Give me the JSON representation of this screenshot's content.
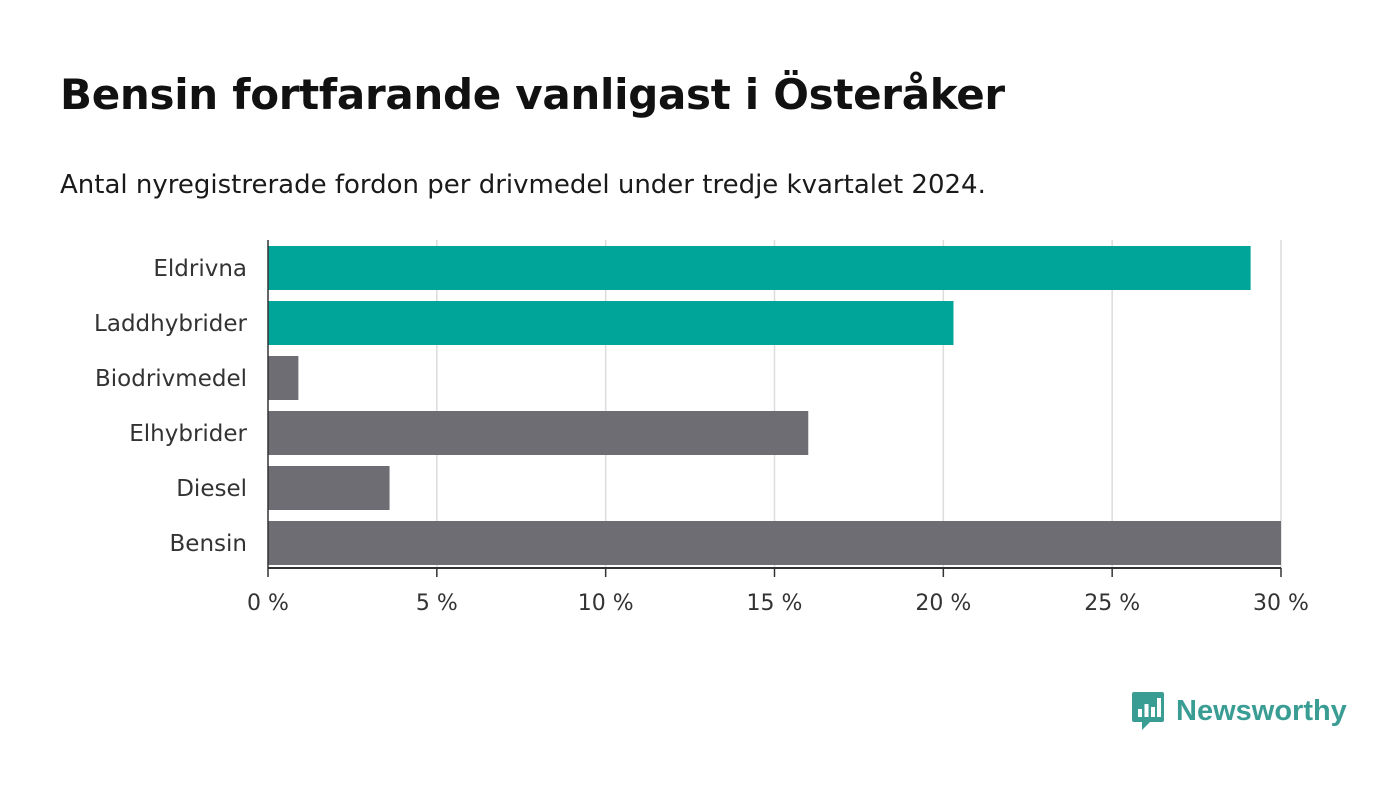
{
  "title": "Bensin fortfarande vanligast i Österåker",
  "subtitle": "Antal nyregistrerade fordon per drivmedel under tredje kvartalet 2024.",
  "brand": {
    "name": "Newsworthy",
    "icon": "newsworthy-logo-icon"
  },
  "colors": {
    "highlight": "#00a59a",
    "default": "#6e6d73",
    "grid": "#dcdcdc",
    "axis": "#333333"
  },
  "chart_data": {
    "type": "bar",
    "orientation": "horizontal",
    "categories": [
      "Eldrivna",
      "Laddhybrider",
      "Biodrivmedel",
      "Elhybrider",
      "Diesel",
      "Bensin"
    ],
    "values": [
      29.1,
      20.3,
      0.9,
      16.0,
      3.6,
      30.0
    ],
    "highlighted": [
      true,
      true,
      false,
      false,
      false,
      false
    ],
    "xlim": [
      0,
      30
    ],
    "xticks": [
      0,
      5,
      10,
      15,
      20,
      25,
      30
    ],
    "tick_labels": [
      "0 %",
      "5 %",
      "10 %",
      "15 %",
      "20 %",
      "25 %",
      "30 %"
    ],
    "xlabel": "",
    "ylabel": "",
    "grid": true
  }
}
